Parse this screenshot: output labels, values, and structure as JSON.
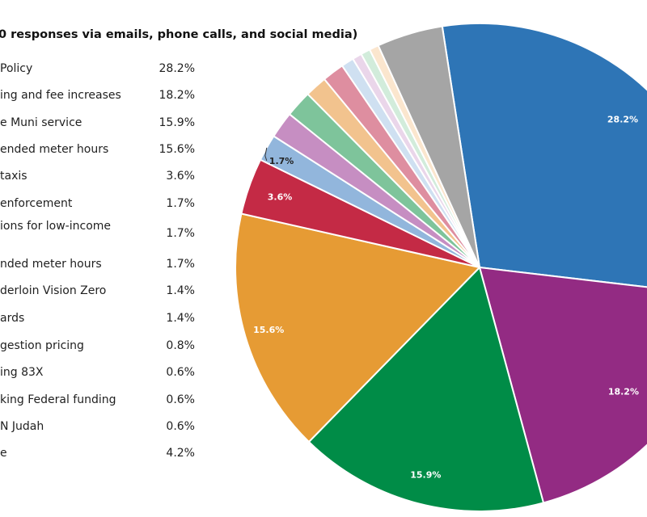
{
  "chart_data": {
    "type": "pie",
    "title": "0 responses via emails, phone calls, and social media)",
    "slices": [
      {
        "label": "Policy",
        "value": 28.2,
        "value_label": "28.2%",
        "color": "#2e75b6"
      },
      {
        "label": "ing and fee increases",
        "value": 18.2,
        "value_label": "18.2%",
        "color": "#932b83"
      },
      {
        "label": "e Muni service",
        "value": 15.9,
        "value_label": "15.9%",
        "color": "#008c47"
      },
      {
        "label": "ended meter hours",
        "value": 15.6,
        "value_label": "15.6%",
        "color": "#e69b34"
      },
      {
        "label": "taxis",
        "value": 3.6,
        "value_label": "3.6%",
        "color": "#c42a45"
      },
      {
        "label": "enforcement",
        "value": 1.7,
        "value_label": "1.7%",
        "color": "#92b6dc"
      },
      {
        "label": "ions for low-income",
        "value": 1.7,
        "value_label": "1.7%",
        "color": "#c68ec2"
      },
      {
        "label": "nded meter hours",
        "value": 1.7,
        "value_label": "1.7%",
        "color": "#7ec49b"
      },
      {
        "label": "derloin Vision Zero",
        "value": 1.4,
        "value_label": "1.4%",
        "color": "#f2c38e"
      },
      {
        "label": "ards",
        "value": 1.4,
        "value_label": "1.4%",
        "color": "#de8ea0"
      },
      {
        "label": "gestion pricing",
        "value": 0.8,
        "value_label": "0.8%",
        "color": "#cfe0f1"
      },
      {
        "label": "ing 83X",
        "value": 0.6,
        "value_label": "0.6%",
        "color": "#ead6ea"
      },
      {
        "label": "king Federal funding",
        "value": 0.6,
        "value_label": "0.6%",
        "color": "#d2ecdb"
      },
      {
        "label": "N Judah",
        "value": 0.6,
        "value_label": "0.6%",
        "color": "#fbe6ce"
      },
      {
        "label": "e",
        "value": 4.2,
        "value_label": "4.2%",
        "color": "#a5a5a5"
      }
    ],
    "slice_labels_shown": [
      "28.2%",
      "18.2%",
      "15.9%",
      "15.6%",
      "3.6%",
      "1.7%"
    ]
  }
}
